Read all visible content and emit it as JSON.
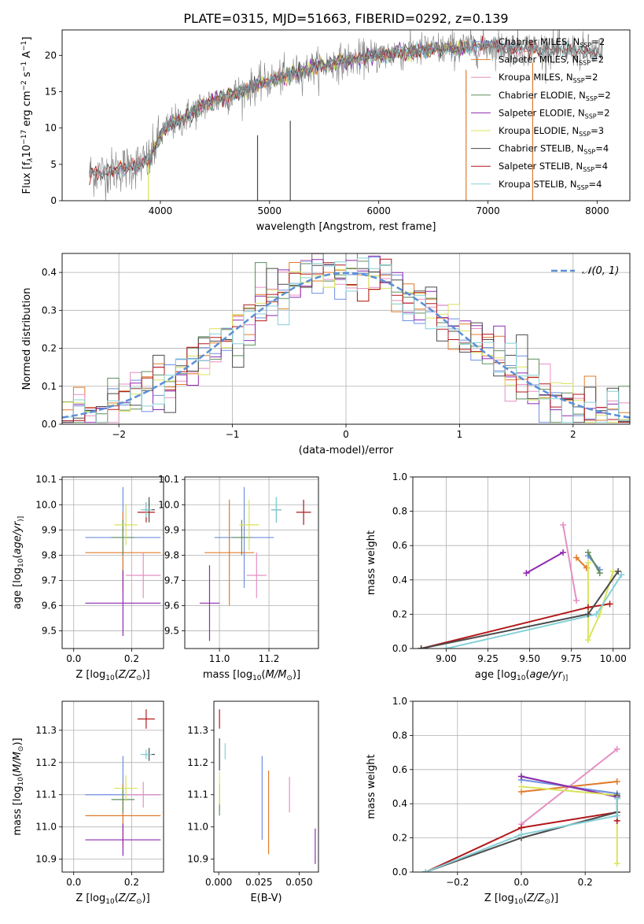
{
  "title": "PLATE=0315, MJD=51663, FIBERID=0292, z=0.139",
  "colors": {
    "Chabrier MILES": "#6f8fdf",
    "Salpeter MILES": "#e07b2a",
    "Kroupa MILES": "#e58fc4",
    "Chabrier ELODIE": "#5f8f5f",
    "Salpeter ELODIE": "#8f2ab0",
    "Kroupa ELODIE": "#d9e45a",
    "Chabrier STELIB": "#4a4a4a",
    "Salpeter STELIB": "#b2181b",
    "Kroupa STELIB": "#86d0d6",
    "normal": "#5b8fd6"
  },
  "chart_data": [
    {
      "id": "spectrum",
      "type": "line",
      "title": "PLATE=0315, MJD=51663, FIBERID=0292, z=0.139",
      "xlabel": "wavelength [Angstrom, rest frame]",
      "ylabel_parts": [
        "Flux [f",
        "λ",
        "10",
        "−17",
        " erg cm",
        "−2",
        " s",
        "−1",
        " A",
        "−1",
        "]"
      ],
      "xlim": [
        3100,
        8300
      ],
      "ylim": [
        0,
        23.5
      ],
      "xticks": [
        4000,
        5000,
        6000,
        7000,
        8000
      ],
      "yticks": [
        0,
        5,
        10,
        15,
        20
      ],
      "grid": false,
      "legend_position": "upper-right",
      "legend": [
        {
          "label": "Chabrier MILES, N",
          "sub": "SSP",
          "tail": "=2",
          "color_key": "Chabrier MILES"
        },
        {
          "label": "Salpeter MILES, N",
          "sub": "SSP",
          "tail": "=2",
          "color_key": "Salpeter MILES"
        },
        {
          "label": "Kroupa MILES, N",
          "sub": "SSP",
          "tail": "=2",
          "color_key": "Kroupa MILES"
        },
        {
          "label": "Chabrier ELODIE, N",
          "sub": "SSP",
          "tail": "=2",
          "color_key": "Chabrier ELODIE"
        },
        {
          "label": "Salpeter ELODIE, N",
          "sub": "SSP",
          "tail": "=2",
          "color_key": "Salpeter ELODIE"
        },
        {
          "label": "Kroupa ELODIE, N",
          "sub": "SSP",
          "tail": "=3",
          "color_key": "Kroupa ELODIE"
        },
        {
          "label": "Chabrier STELIB, N",
          "sub": "SSP",
          "tail": "=4",
          "color_key": "Chabrier STELIB"
        },
        {
          "label": "Salpeter STELIB, N",
          "sub": "SSP",
          "tail": "=4",
          "color_key": "Salpeter STELIB"
        },
        {
          "label": "Kroupa STELIB, N",
          "sub": "SSP",
          "tail": "=4",
          "color_key": "Kroupa STELIB"
        }
      ],
      "continuum_x": [
        3350,
        3500,
        3600,
        3700,
        3800,
        3900,
        4000,
        4100,
        4200,
        4300,
        4400,
        4600,
        4800,
        5000,
        5200,
        5400,
        5600,
        5800,
        6000,
        6200,
        6400,
        6600,
        6800,
        7000,
        7200,
        7400,
        7600,
        7800,
        8050
      ],
      "continuum_y": [
        3.8,
        3.9,
        4.3,
        4.6,
        5.0,
        5.6,
        9.0,
        10.5,
        11.2,
        12.2,
        13.2,
        14.3,
        15.4,
        16.5,
        17.4,
        18.3,
        19.0,
        19.5,
        20.0,
        20.4,
        20.7,
        20.9,
        21.1,
        21.3,
        21.1,
        21.0,
        20.8,
        20.6,
        20.3
      ]
    },
    {
      "id": "residuals",
      "type": "line",
      "xlabel": "(data-model)/error",
      "ylabel": "Normed distribution",
      "xlim": [
        -2.5,
        2.5
      ],
      "ylim": [
        0,
        0.45
      ],
      "xticks": [
        -2,
        -1,
        0,
        1,
        2
      ],
      "yticks": [
        0.0,
        0.1,
        0.2,
        0.3,
        0.4
      ],
      "xticklabels": [
        "−2",
        "−1",
        "0",
        "1",
        "2"
      ],
      "yticklabels": [
        "0.0",
        "0.1",
        "0.2",
        "0.3",
        "0.4"
      ],
      "grid": true,
      "legend_position": "upper-right",
      "legend": [
        {
          "label": "𝒩(0, 1)",
          "color_key": "normal",
          "style": "dashed"
        }
      ],
      "normal": {
        "mu": 0,
        "sigma": 1
      }
    },
    {
      "id": "age-vs-Z",
      "type": "scatter",
      "xlabel_parts": [
        "Z [log",
        "10",
        "(",
        "Z/Z",
        "⊙",
        ")]"
      ],
      "ylabel_parts": [
        "age  [log",
        "10",
        "(",
        "age/yr",
        ")]"
      ],
      "xlim": [
        -0.04,
        0.31
      ],
      "ylim": [
        9.43,
        10.11
      ],
      "xticks": [
        0.0,
        0.2
      ],
      "yticks": [
        9.5,
        9.6,
        9.7,
        9.8,
        9.9,
        10.0,
        10.1
      ],
      "xticklabels": [
        "0.0",
        "0.2"
      ],
      "yticklabels": [
        "9.5",
        "9.6",
        "9.7",
        "9.8",
        "9.9",
        "10.0",
        "10.1"
      ],
      "grid": true,
      "points": [
        {
          "k": "Chabrier MILES",
          "x": 0.17,
          "y": 9.87,
          "xe": 0.13,
          "ye": 0.2
        },
        {
          "k": "Salpeter MILES",
          "x": 0.17,
          "y": 9.81,
          "xe": 0.13,
          "ye": 0.16
        },
        {
          "k": "Kroupa MILES",
          "x": 0.24,
          "y": 9.72,
          "xe": 0.06,
          "ye": 0.09
        },
        {
          "k": "Chabrier ELODIE",
          "x": 0.17,
          "y": 9.87,
          "xe": 0.04,
          "ye": 0.07
        },
        {
          "k": "Salpeter ELODIE",
          "x": 0.17,
          "y": 9.61,
          "xe": 0.13,
          "ye": 0.13
        },
        {
          "k": "Kroupa ELODIE",
          "x": 0.18,
          "y": 9.92,
          "xe": 0.04,
          "ye": 0.08
        },
        {
          "k": "Chabrier STELIB",
          "x": 0.26,
          "y": 9.98,
          "xe": 0.02,
          "ye": 0.05
        },
        {
          "k": "Salpeter STELIB",
          "x": 0.25,
          "y": 9.97,
          "xe": 0.03,
          "ye": 0.04
        },
        {
          "k": "Kroupa STELIB",
          "x": 0.25,
          "y": 9.98,
          "xe": 0.02,
          "ye": 0.03
        }
      ]
    },
    {
      "id": "age-vs-mass",
      "type": "scatter",
      "xlabel_parts": [
        "mass [log",
        "10",
        "(",
        "M/M",
        "⊙",
        ")]"
      ],
      "xlim": [
        10.86,
        11.4
      ],
      "ylim": [
        9.43,
        10.11
      ],
      "xticks": [
        11.0,
        11.2
      ],
      "yticks": [
        9.5,
        9.6,
        9.7,
        9.8,
        9.9,
        10.0,
        10.1
      ],
      "xticklabels": [
        "11.0",
        "11.2"
      ],
      "yticklabels": [
        "9.5",
        "9.6",
        "9.7",
        "9.8",
        "9.9",
        "10.0",
        "10.1"
      ],
      "grid": true,
      "points": [
        {
          "k": "Chabrier MILES",
          "x": 11.1,
          "y": 9.87,
          "xe": 0.12,
          "ye": 0.2
        },
        {
          "k": "Salpeter MILES",
          "x": 11.04,
          "y": 9.81,
          "xe": 0.1,
          "ye": 0.21
        },
        {
          "k": "Kroupa MILES",
          "x": 11.15,
          "y": 9.72,
          "xe": 0.04,
          "ye": 0.09
        },
        {
          "k": "Chabrier ELODIE",
          "x": 11.09,
          "y": 9.87,
          "xe": 0.04,
          "ye": 0.07
        },
        {
          "k": "Salpeter ELODIE",
          "x": 10.96,
          "y": 9.61,
          "xe": 0.04,
          "ye": 0.15
        },
        {
          "k": "Kroupa ELODIE",
          "x": 11.12,
          "y": 9.92,
          "xe": 0.04,
          "ye": 0.1
        },
        {
          "k": "Chabrier STELIB",
          "x": 11.23,
          "y": 9.98,
          "xe": 0.02,
          "ye": 0.05
        },
        {
          "k": "Salpeter STELIB",
          "x": 11.34,
          "y": 9.97,
          "xe": 0.03,
          "ye": 0.05
        },
        {
          "k": "Kroupa STELIB",
          "x": 11.23,
          "y": 9.98,
          "xe": 0.02,
          "ye": 0.05
        }
      ]
    },
    {
      "id": "mass-weight-vs-age",
      "type": "line",
      "xlabel_parts": [
        "age  [log",
        "10",
        "(",
        "age/yr",
        ")]"
      ],
      "ylabel": "mass weight",
      "xlim": [
        8.8,
        10.1
      ],
      "ylim": [
        0,
        1.0
      ],
      "xticks": [
        9.0,
        9.25,
        9.5,
        9.75,
        10.0
      ],
      "yticks": [
        0.0,
        0.2,
        0.4,
        0.6,
        0.8,
        1.0
      ],
      "xticklabels": [
        "9.00",
        "9.25",
        "9.50",
        "9.75",
        "10.00"
      ],
      "yticklabels": [
        "0.0",
        "0.2",
        "0.4",
        "0.6",
        "0.8",
        "1.0"
      ],
      "grid": true,
      "series": [
        {
          "k": "Salpeter ELODIE",
          "x": [
            9.48,
            9.7
          ],
          "y": [
            0.44,
            0.56
          ]
        },
        {
          "k": "Kroupa MILES",
          "x": [
            9.7,
            9.78
          ],
          "y": [
            0.72,
            0.28
          ]
        },
        {
          "k": "Salpeter MILES",
          "x": [
            9.78,
            9.84
          ],
          "y": [
            0.53,
            0.47
          ]
        },
        {
          "k": "Chabrier MILES",
          "x": [
            9.85,
            9.92
          ],
          "y": [
            0.54,
            0.46
          ]
        },
        {
          "k": "Chabrier ELODIE",
          "x": [
            9.85,
            9.92
          ],
          "y": [
            0.56,
            0.44
          ]
        },
        {
          "k": "Kroupa ELODIE",
          "x": [
            9.85,
            9.85,
            9.92,
            10.0
          ],
          "y": [
            0.5,
            0.05,
            0.2,
            0.45
          ]
        },
        {
          "k": "Salpeter STELIB",
          "x": [
            8.85,
            9.85,
            9.98
          ],
          "y": [
            0.0,
            0.24,
            0.26
          ]
        },
        {
          "k": "Kroupa STELIB",
          "x": [
            9.0,
            9.9,
            10.05
          ],
          "y": [
            0.0,
            0.2,
            0.43
          ]
        },
        {
          "k": "Chabrier STELIB",
          "x": [
            8.85,
            9.85,
            10.03
          ],
          "y": [
            0.0,
            0.2,
            0.45
          ]
        }
      ]
    },
    {
      "id": "mass-vs-Z",
      "type": "scatter",
      "xlabel_parts": [
        "Z [log",
        "10",
        "(",
        "Z/Z",
        "⊙",
        ")]"
      ],
      "ylabel_parts": [
        "mass [log",
        "10",
        "(",
        "M/M",
        "⊙",
        ")]"
      ],
      "xlim": [
        -0.04,
        0.31
      ],
      "ylim": [
        10.86,
        11.39
      ],
      "xticks": [
        0.0,
        0.2
      ],
      "yticks": [
        10.9,
        11.0,
        11.1,
        11.2,
        11.3
      ],
      "xticklabels": [
        "0.0",
        "0.2"
      ],
      "yticklabels": [
        "10.9",
        "11.0",
        "11.1",
        "11.2",
        "11.3"
      ],
      "grid": true,
      "points": [
        {
          "k": "Chabrier MILES",
          "x": 0.17,
          "y": 11.1,
          "xe": 0.13,
          "ye": 0.12
        },
        {
          "k": "Salpeter MILES",
          "x": 0.17,
          "y": 11.035,
          "xe": 0.13,
          "ye": 0.1
        },
        {
          "k": "Kroupa MILES",
          "x": 0.24,
          "y": 11.1,
          "xe": 0.06,
          "ye": 0.04
        },
        {
          "k": "Chabrier ELODIE",
          "x": 0.17,
          "y": 11.085,
          "xe": 0.04,
          "ye": 0.04
        },
        {
          "k": "Salpeter ELODIE",
          "x": 0.17,
          "y": 10.96,
          "xe": 0.13,
          "ye": 0.05
        },
        {
          "k": "Kroupa ELODIE",
          "x": 0.18,
          "y": 11.12,
          "xe": 0.04,
          "ye": 0.04
        },
        {
          "k": "Chabrier STELIB",
          "x": 0.26,
          "y": 11.225,
          "xe": 0.02,
          "ye": 0.02
        },
        {
          "k": "Salpeter STELIB",
          "x": 0.25,
          "y": 11.335,
          "xe": 0.03,
          "ye": 0.03
        },
        {
          "k": "Kroupa STELIB",
          "x": 0.25,
          "y": 11.225,
          "xe": 0.02,
          "ye": 0.015
        }
      ]
    },
    {
      "id": "mass-vs-EBV",
      "type": "scatter",
      "xlabel": "E(B-V)",
      "xlim": [
        -0.003,
        0.062
      ],
      "ylim": [
        10.86,
        11.39
      ],
      "xticks": [
        0.0,
        0.025,
        0.05
      ],
      "yticks": [
        10.9,
        11.0,
        11.1,
        11.2,
        11.3
      ],
      "xticklabels": [
        "0.000",
        "0.025",
        "0.050"
      ],
      "yticklabels": [
        "10.9",
        "11.0",
        "11.1",
        "11.2",
        "11.3"
      ],
      "grid": false,
      "points": [
        {
          "k": "Chabrier MILES",
          "x": 0.027,
          "y": 11.09,
          "xe": 0,
          "ye": 0.13
        },
        {
          "k": "Salpeter MILES",
          "x": 0.031,
          "y": 11.045,
          "xe": 0,
          "ye": 0.13
        },
        {
          "k": "Kroupa MILES",
          "x": 0.044,
          "y": 11.1,
          "xe": 0,
          "ye": 0.055
        },
        {
          "k": "Chabrier ELODIE",
          "x": 0.0005,
          "y": 11.085,
          "xe": 0,
          "ye": 0.05
        },
        {
          "k": "Salpeter ELODIE",
          "x": 0.06,
          "y": 10.94,
          "xe": 0,
          "ye": 0.055
        },
        {
          "k": "Kroupa ELODIE",
          "x": 0.0005,
          "y": 11.12,
          "xe": 0,
          "ye": 0.05
        },
        {
          "k": "Chabrier STELIB",
          "x": 0.0005,
          "y": 11.225,
          "xe": 0,
          "ye": 0.05
        },
        {
          "k": "Salpeter STELIB",
          "x": 0.0005,
          "y": 11.335,
          "xe": 0,
          "ye": 0.03
        },
        {
          "k": "Kroupa STELIB",
          "x": 0.004,
          "y": 11.235,
          "xe": 0,
          "ye": 0.025
        }
      ]
    },
    {
      "id": "mass-weight-vs-Z",
      "type": "line",
      "xlabel_parts": [
        "Z [log",
        "10",
        "(",
        "Z/Z",
        "⊙",
        ")]"
      ],
      "ylabel": "mass weight",
      "xlim": [
        -0.34,
        0.34
      ],
      "ylim": [
        0,
        1.0
      ],
      "xticks": [
        -0.2,
        0.0,
        0.2
      ],
      "yticks": [
        0.0,
        0.2,
        0.4,
        0.6,
        0.8,
        1.0
      ],
      "xticklabels": [
        "−0.2",
        "0.0",
        "0.2"
      ],
      "yticklabels": [
        "0.0",
        "0.2",
        "0.4",
        "0.6",
        "0.8",
        "1.0"
      ],
      "grid": true,
      "series": [
        {
          "k": "Kroupa MILES",
          "x": [
            0.0,
            0.3
          ],
          "y": [
            0.28,
            0.72
          ]
        },
        {
          "k": "Salpeter MILES",
          "x": [
            0.0,
            0.3
          ],
          "y": [
            0.47,
            0.53
          ]
        },
        {
          "k": "Chabrier MILES",
          "x": [
            0.0,
            0.3
          ],
          "y": [
            0.54,
            0.46
          ]
        },
        {
          "k": "Chabrier ELODIE",
          "x": [
            0.0,
            0.3
          ],
          "y": [
            0.56,
            0.44
          ]
        },
        {
          "k": "Salpeter ELODIE",
          "x": [
            0.0,
            0.3
          ],
          "y": [
            0.56,
            0.44
          ]
        },
        {
          "k": "Kroupa ELODIE",
          "x": [
            0.0,
            0.3,
            0.3
          ],
          "y": [
            0.5,
            0.45,
            0.05
          ]
        },
        {
          "k": "Salpeter STELIB",
          "x": [
            -0.3,
            0.0,
            0.3,
            0.3
          ],
          "y": [
            0.0,
            0.26,
            0.35,
            0.3
          ]
        },
        {
          "k": "Chabrier STELIB",
          "x": [
            -0.3,
            0.0,
            0.3,
            0.3
          ],
          "y": [
            0.0,
            0.2,
            0.35,
            0.45
          ]
        },
        {
          "k": "Kroupa STELIB",
          "x": [
            -0.3,
            0.0,
            0.3,
            0.3
          ],
          "y": [
            0.0,
            0.22,
            0.33,
            0.43
          ]
        }
      ]
    }
  ]
}
